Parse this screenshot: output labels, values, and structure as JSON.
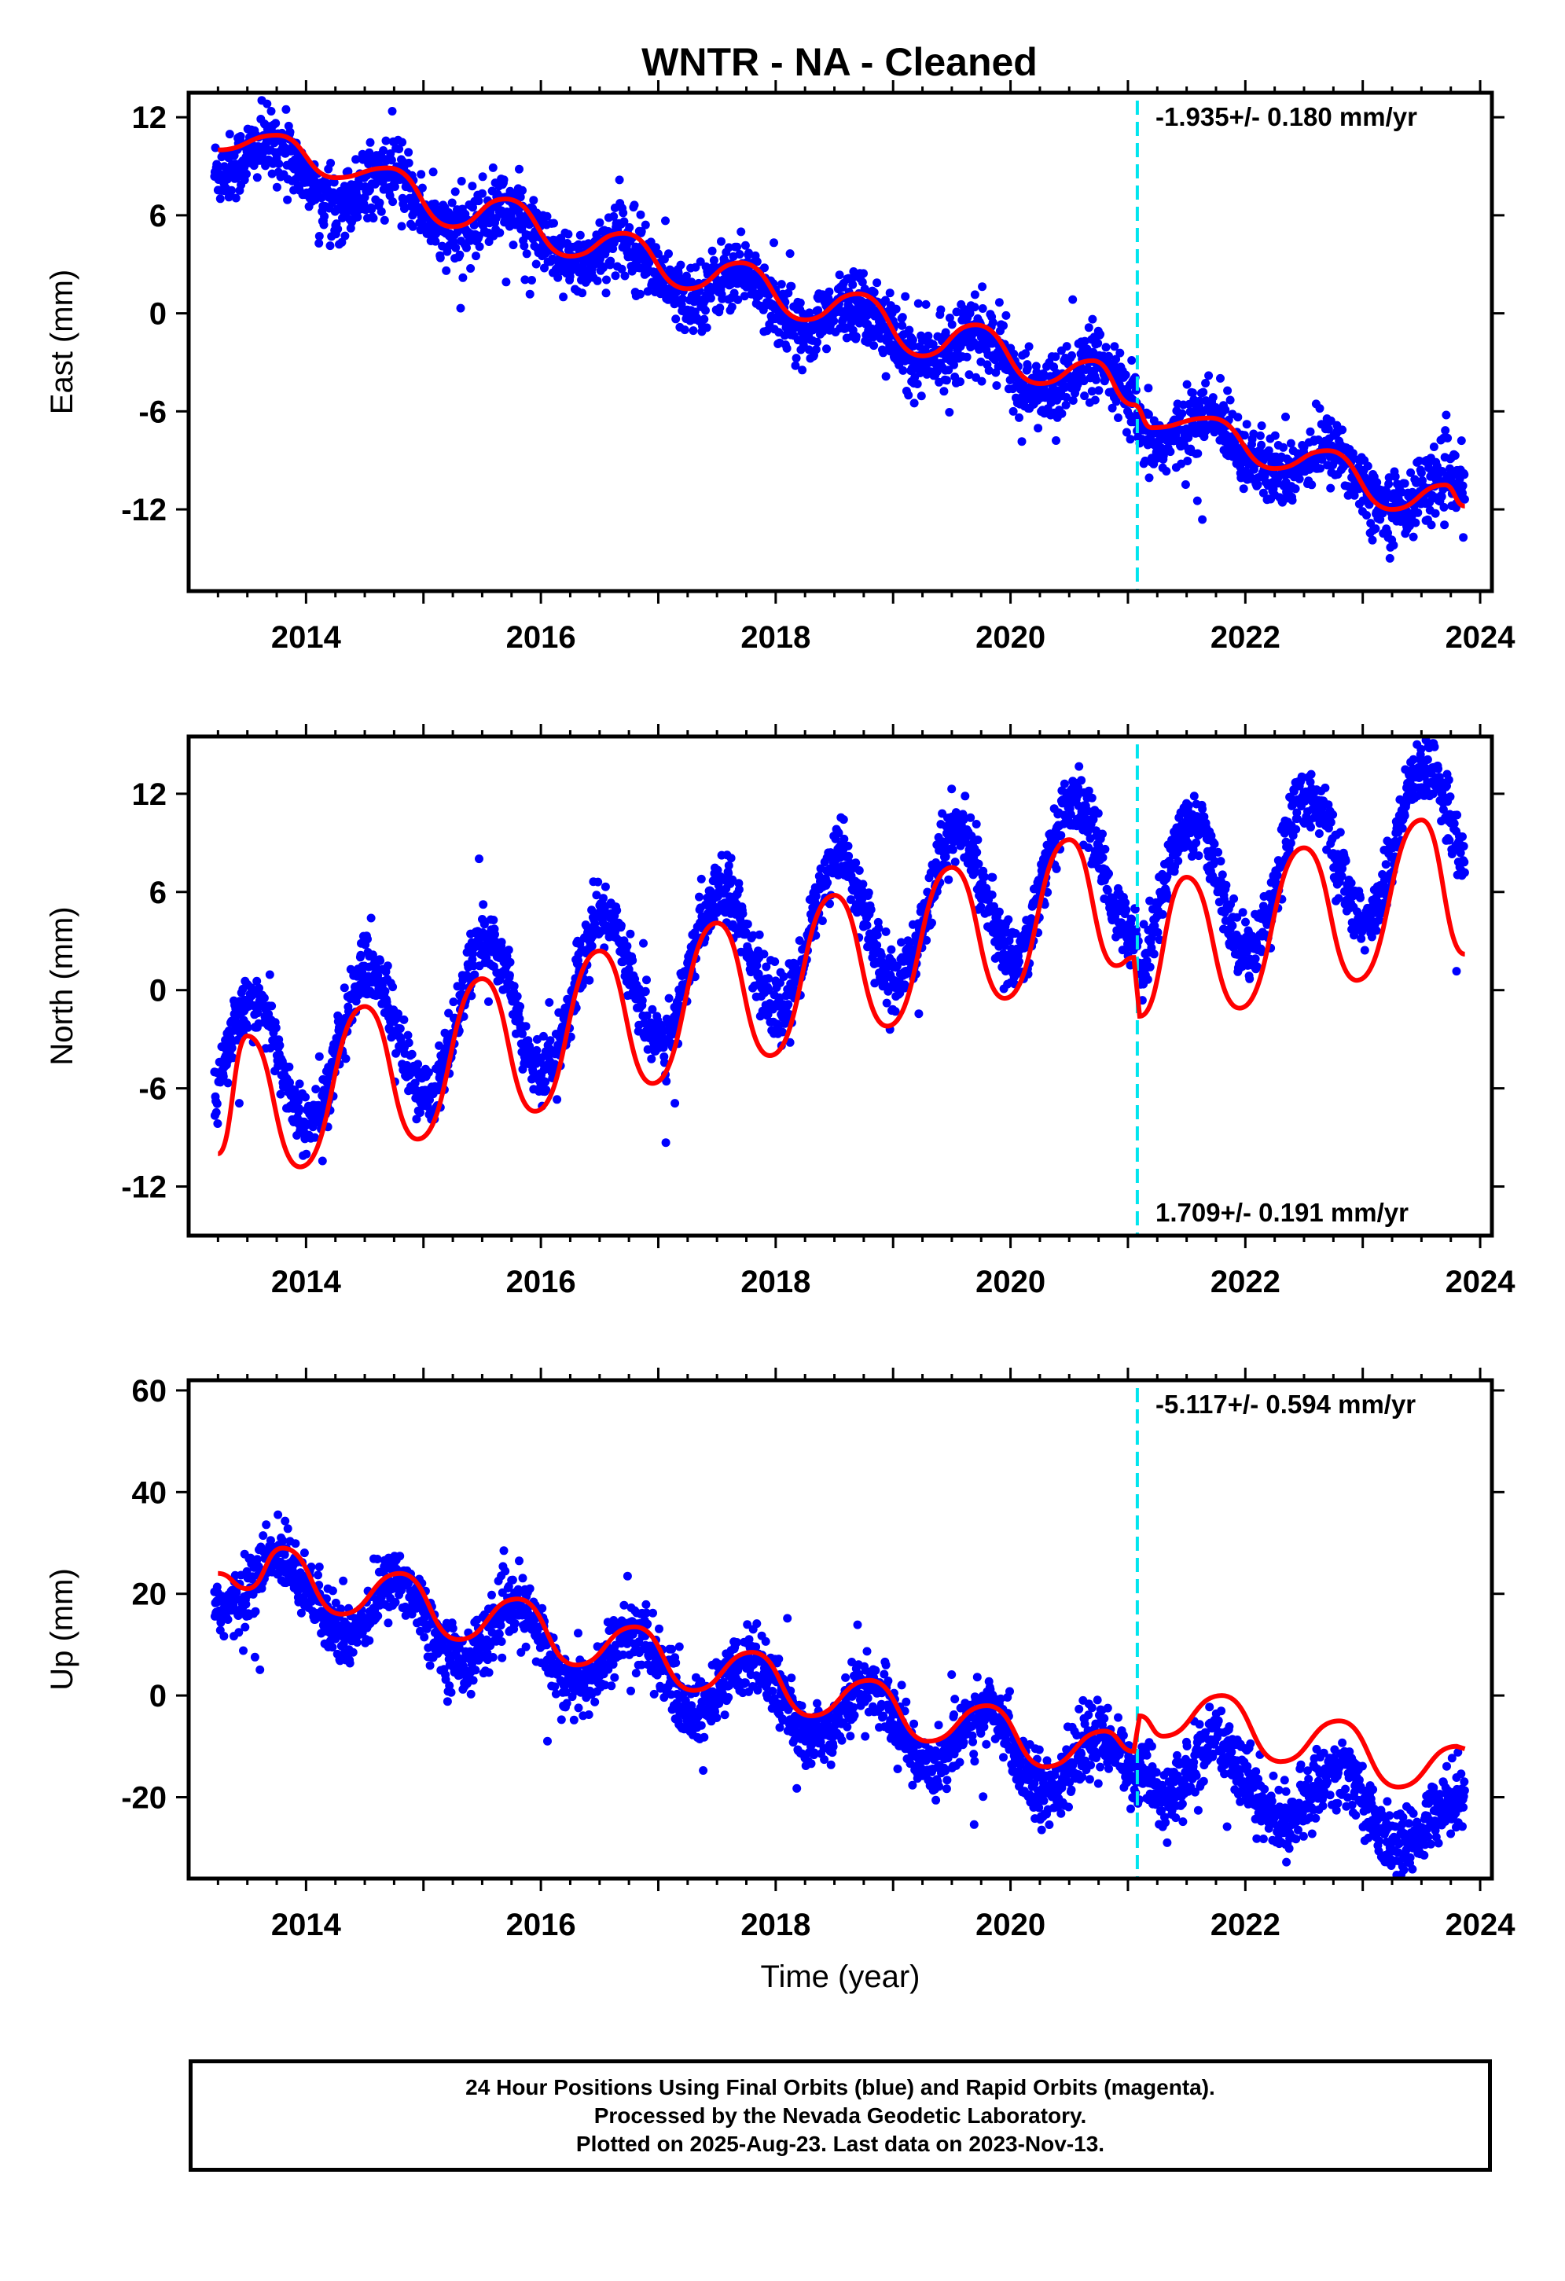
{
  "title": "WNTR  - NA - Cleaned",
  "colors": {
    "final_orbits": "#0000ff",
    "rapid_orbits": "#ff00ff",
    "model_fit": "#ff0000",
    "offset_marker": "#00e5ee"
  },
  "offset_epoch": 2021.08,
  "chart_data": [
    {
      "type": "scatter",
      "panel": "east",
      "ylabel": "East (mm)",
      "xlabel": "",
      "xlim": [
        2013.0,
        2024.1
      ],
      "ylim": [
        -17,
        13.5
      ],
      "xticks": [
        "2014",
        "2016",
        "2018",
        "2020",
        "2022",
        "2024"
      ],
      "xtick_values": [
        2014,
        2016,
        2018,
        2020,
        2022,
        2024
      ],
      "yticks": [
        "12",
        "6",
        "0",
        "-6",
        "-12"
      ],
      "ytick_values": [
        12,
        6,
        0,
        -6,
        -12
      ],
      "velocity_label": "-1.935+/- 0.180 mm/yr",
      "label_position": "top-right",
      "series": [
        {
          "name": "Final Orbits",
          "model": {
            "offset": 10.0,
            "trend": -1.935,
            "ann_amp": 1.3,
            "ann_peak": 0.72,
            "step_at": 2021.08,
            "step_size": -1.2,
            "noise": 1.3
          },
          "fit_points": [
            [
              2013.25,
              10.0
            ],
            [
              2013.75,
              10.9
            ],
            [
              2014.25,
              8.3
            ],
            [
              2014.7,
              8.9
            ],
            [
              2015.25,
              5.3
            ],
            [
              2015.7,
              7.0
            ],
            [
              2016.25,
              3.5
            ],
            [
              2016.7,
              4.9
            ],
            [
              2017.25,
              1.5
            ],
            [
              2017.7,
              3.1
            ],
            [
              2018.25,
              -0.4
            ],
            [
              2018.7,
              1.2
            ],
            [
              2019.25,
              -2.6
            ],
            [
              2019.7,
              -0.7
            ],
            [
              2020.25,
              -4.3
            ],
            [
              2020.7,
              -2.9
            ],
            [
              2021.05,
              -5.6
            ],
            [
              2021.2,
              -7.0
            ],
            [
              2021.7,
              -6.4
            ],
            [
              2022.25,
              -9.5
            ],
            [
              2022.7,
              -8.4
            ],
            [
              2023.25,
              -12.0
            ],
            [
              2023.7,
              -10.5
            ],
            [
              2023.87,
              -11.8
            ]
          ]
        }
      ]
    },
    {
      "type": "scatter",
      "panel": "north",
      "ylabel": "North (mm)",
      "xlabel": "",
      "xlim": [
        2013.0,
        2024.1
      ],
      "ylim": [
        -15,
        15.5
      ],
      "xticks": [
        "2014",
        "2016",
        "2018",
        "2020",
        "2022",
        "2024"
      ],
      "xtick_values": [
        2014,
        2016,
        2018,
        2020,
        2022,
        2024
      ],
      "yticks": [
        "12",
        "6",
        "0",
        "-6",
        "-12"
      ],
      "ytick_values": [
        12,
        6,
        0,
        -6,
        -12
      ],
      "velocity_label": "1.709+/- 0.191 mm/yr",
      "label_position": "bottom-right",
      "series": [
        {
          "name": "Final Orbits",
          "model": {
            "offset": -5.3,
            "trend": 1.709,
            "ann_amp": 4.3,
            "ann_peak": 0.53,
            "step_at": 2021.08,
            "step_size": -3.0,
            "noise": 1.2
          },
          "fit_points": [
            [
              2013.25,
              -10.0
            ],
            [
              2013.5,
              -2.8
            ],
            [
              2013.95,
              -10.8
            ],
            [
              2014.5,
              -1.0
            ],
            [
              2014.95,
              -9.1
            ],
            [
              2015.5,
              0.7
            ],
            [
              2015.95,
              -7.4
            ],
            [
              2016.5,
              2.4
            ],
            [
              2016.95,
              -5.7
            ],
            [
              2017.5,
              4.1
            ],
            [
              2017.95,
              -4.0
            ],
            [
              2018.5,
              5.8
            ],
            [
              2018.95,
              -2.2
            ],
            [
              2019.5,
              7.5
            ],
            [
              2019.95,
              -0.5
            ],
            [
              2020.5,
              9.2
            ],
            [
              2020.9,
              1.5
            ],
            [
              2021.05,
              2.0
            ],
            [
              2021.1,
              -1.6
            ],
            [
              2021.5,
              6.9
            ],
            [
              2021.95,
              -1.1
            ],
            [
              2022.5,
              8.7
            ],
            [
              2022.95,
              0.6
            ],
            [
              2023.5,
              10.4
            ],
            [
              2023.87,
              2.2
            ]
          ]
        }
      ]
    },
    {
      "type": "scatter",
      "panel": "up",
      "ylabel": "Up (mm)",
      "xlabel": "Time (year)",
      "xlim": [
        2013.0,
        2024.1
      ],
      "ylim": [
        -36,
        62
      ],
      "xticks": [
        "2014",
        "2016",
        "2018",
        "2020",
        "2022",
        "2024"
      ],
      "xtick_values": [
        2014,
        2016,
        2018,
        2020,
        2022,
        2024
      ],
      "yticks": [
        "60",
        "40",
        "20",
        "0",
        "-20"
      ],
      "ytick_values": [
        60,
        40,
        20,
        0,
        -20
      ],
      "velocity_label": "-5.117+/- 0.594 mm/yr",
      "label_position": "top-right",
      "series": [
        {
          "name": "Final Orbits",
          "model": {
            "offset": 24.0,
            "trend": -5.117,
            "ann_amp": 6.5,
            "ann_peak": 0.8,
            "step_at": 2021.08,
            "step_size": 4.0,
            "noise": 4.0
          },
          "fit_points": [
            [
              2013.25,
              24.0
            ],
            [
              2013.5,
              21.0
            ],
            [
              2013.8,
              29.0
            ],
            [
              2014.3,
              16.0
            ],
            [
              2014.8,
              24.0
            ],
            [
              2015.3,
              11.0
            ],
            [
              2015.8,
              19.0
            ],
            [
              2016.3,
              6.0
            ],
            [
              2016.8,
              13.5
            ],
            [
              2017.3,
              1.0
            ],
            [
              2017.8,
              8.5
            ],
            [
              2018.3,
              -4.0
            ],
            [
              2018.8,
              3.0
            ],
            [
              2019.3,
              -9.0
            ],
            [
              2019.8,
              -2.0
            ],
            [
              2020.3,
              -14.0
            ],
            [
              2020.8,
              -7.0
            ],
            [
              2021.05,
              -11.0
            ],
            [
              2021.1,
              -4.0
            ],
            [
              2021.3,
              -8.0
            ],
            [
              2021.8,
              0.0
            ],
            [
              2022.3,
              -13.0
            ],
            [
              2022.8,
              -5.0
            ],
            [
              2023.3,
              -18.0
            ],
            [
              2023.8,
              -10.0
            ],
            [
              2023.87,
              -10.5
            ]
          ]
        }
      ]
    }
  ],
  "footer": {
    "line1": "24 Hour Positions Using Final Orbits (blue) and Rapid Orbits (magenta).",
    "line2": "Processed by the Nevada Geodetic Laboratory.",
    "line3": "Plotted on 2025-Aug-23. Last data on 2023-Nov-13."
  }
}
